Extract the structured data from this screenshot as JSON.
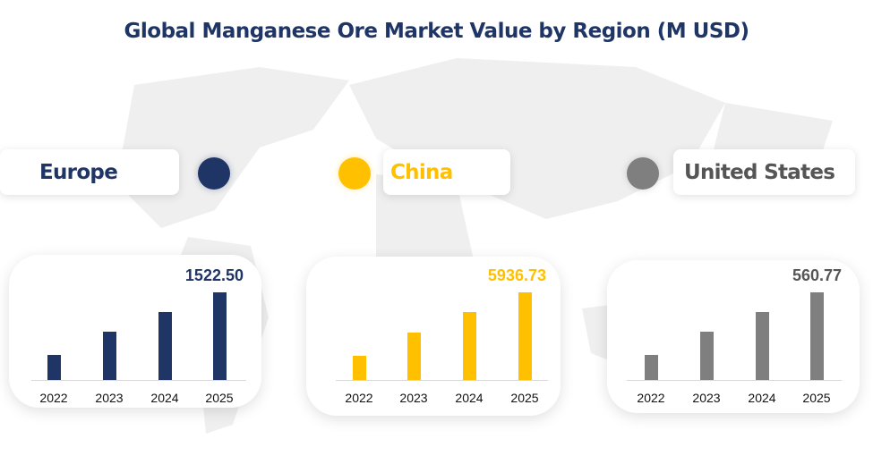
{
  "title": "Global Manganese Ore Market Value by Region (M USD)",
  "chart_data": [
    {
      "type": "bar",
      "region": "Europe",
      "color": "#1f3566",
      "categories": [
        "2022",
        "2023",
        "2024",
        "2025"
      ],
      "values": [
        435,
        838,
        1181,
        1522.5
      ],
      "value_label": "1522.50"
    },
    {
      "type": "bar",
      "region": "China",
      "color": "#ffc000",
      "categories": [
        "2022",
        "2023",
        "2024",
        "2025"
      ],
      "values": [
        1652,
        3184,
        4590,
        5936.73
      ],
      "value_label": "5936.73"
    },
    {
      "type": "bar",
      "region": "United States",
      "color": "#7f7f7f",
      "label_color": "#555555",
      "categories": [
        "2022",
        "2023",
        "2024",
        "2025"
      ],
      "values": [
        160,
        309,
        435,
        560.77
      ],
      "value_label": "560.77"
    }
  ]
}
